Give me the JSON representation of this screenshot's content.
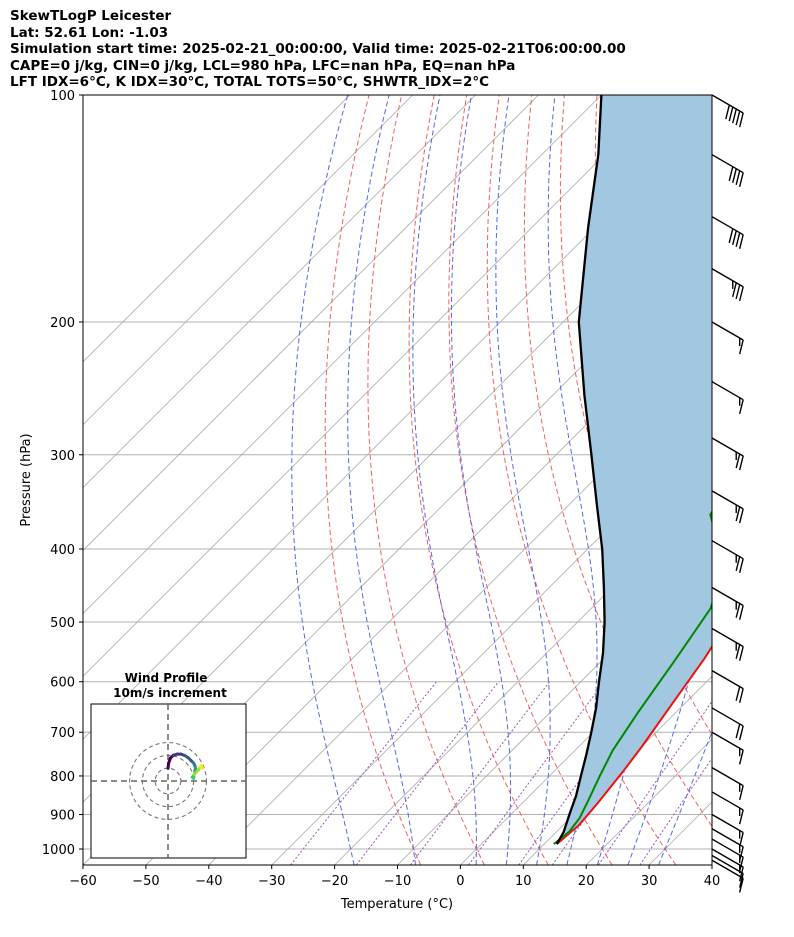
{
  "header": {
    "line1": "SkewTLogP Leicester",
    "line2": "Lat: 52.61   Lon: -1.03",
    "line3": "Simulation start time: 2025-02-21_00:00:00, Valid time: 2025-02-21T06:00:00.00",
    "line4": "CAPE=0 j/kg, CIN=0 j/kg, LCL=980 hPa, LFC=nan hPa, EQ=nan hPa",
    "line5": "LFT IDX=6°C, K IDX=30°C, TOTAL TOTS=50°C, SHWTR_IDX=2°C"
  },
  "chart_data": {
    "type": "line",
    "xlabel": "Temperature (°C)",
    "ylabel": "Pressure (hPa)",
    "xlim": [
      -60,
      40
    ],
    "ylim": [
      1050,
      100
    ],
    "y_scale": "log",
    "skew": true,
    "x_ticks": [
      "−60",
      "−50",
      "−40",
      "−30",
      "−20",
      "−10",
      "0",
      "10",
      "20",
      "30",
      "40"
    ],
    "y_ticks": [
      "100",
      "200",
      "300",
      "400",
      "500",
      "600",
      "700",
      "800",
      "900",
      "1000"
    ],
    "series": [
      {
        "kind": "temperature",
        "color": "#ee1111",
        "points": [
          [
            12,
            985
          ],
          [
            12.5,
            930
          ],
          [
            12,
            870
          ],
          [
            11,
            790
          ],
          [
            10,
            730
          ],
          [
            8,
            640
          ],
          [
            6,
            560
          ],
          [
            3.5,
            490
          ],
          [
            0,
            420
          ],
          [
            -3,
            390
          ],
          [
            -9,
            340
          ],
          [
            -14,
            300
          ],
          [
            -19,
            265
          ],
          [
            -24,
            238
          ],
          [
            -27,
            218
          ],
          [
            -28,
            205
          ],
          [
            -29,
            188
          ],
          [
            -31,
            175
          ],
          [
            -34,
            160
          ],
          [
            -38,
            143
          ],
          [
            -42,
            130
          ],
          [
            -46,
            120
          ],
          [
            -52,
            108
          ],
          [
            -57,
            100
          ]
        ]
      },
      {
        "kind": "dewpoint",
        "color": "#008800",
        "points": [
          [
            11.5,
            985
          ],
          [
            12,
            950
          ],
          [
            11.5,
            910
          ],
          [
            10,
            860
          ],
          [
            8,
            800
          ],
          [
            6,
            740
          ],
          [
            4,
            660
          ],
          [
            1.5,
            560
          ],
          [
            -1,
            480
          ],
          [
            -4,
            440
          ],
          [
            -9,
            400
          ],
          [
            -16,
            360
          ],
          [
            -17.5,
            330
          ],
          [
            -20,
            300
          ],
          [
            -24,
            275
          ],
          [
            -28,
            250
          ],
          [
            -33,
            225
          ],
          [
            -37,
            205
          ],
          [
            -39,
            190
          ],
          [
            -39,
            180
          ],
          [
            -40,
            168
          ],
          [
            -43,
            155
          ],
          [
            -43,
            145
          ],
          [
            -46,
            135
          ],
          [
            -48,
            125
          ],
          [
            -49,
            118
          ],
          [
            -52,
            112
          ],
          [
            -55,
            105
          ],
          [
            -57,
            100
          ]
        ]
      },
      {
        "kind": "parcel",
        "color": "#000000",
        "points": [
          [
            12,
            985
          ],
          [
            11.2,
            950
          ],
          [
            9.3,
            900
          ],
          [
            7.4,
            850
          ],
          [
            5,
            800
          ],
          [
            2.5,
            750
          ],
          [
            -0.3,
            700
          ],
          [
            -3.4,
            650
          ],
          [
            -7.1,
            600
          ],
          [
            -11,
            550
          ],
          [
            -15.7,
            500
          ],
          [
            -21.3,
            450
          ],
          [
            -27.7,
            400
          ],
          [
            -35.5,
            350
          ],
          [
            -44.4,
            300
          ],
          [
            -55,
            250
          ],
          [
            -67.5,
            200
          ],
          [
            -81,
            150
          ],
          [
            -91,
            120
          ],
          [
            -100,
            100
          ]
        ]
      }
    ],
    "dry_adiabats_theta_C": [
      -10,
      0,
      10,
      20,
      30,
      40,
      50,
      60,
      70,
      80,
      90,
      100
    ],
    "moist_adiabats_C": [
      -20,
      -10,
      0,
      5,
      10,
      15,
      20,
      25,
      30
    ],
    "mixing_ratios_gkg": [
      0.4,
      1,
      2,
      4,
      7,
      10,
      16,
      24
    ],
    "cape_fill_color": "#a2c7e0",
    "wind_barbs": [
      {
        "p": 100,
        "speed_kt": 50,
        "dir_deg": 300
      },
      {
        "p": 120,
        "speed_kt": 40,
        "dir_deg": 300
      },
      {
        "p": 145,
        "speed_kt": 40,
        "dir_deg": 300
      },
      {
        "p": 170,
        "speed_kt": 35,
        "dir_deg": 300
      },
      {
        "p": 200,
        "speed_kt": 15,
        "dir_deg": 300
      },
      {
        "p": 240,
        "speed_kt": 15,
        "dir_deg": 300
      },
      {
        "p": 285,
        "speed_kt": 25,
        "dir_deg": 300
      },
      {
        "p": 335,
        "speed_kt": 25,
        "dir_deg": 300
      },
      {
        "p": 390,
        "speed_kt": 25,
        "dir_deg": 300
      },
      {
        "p": 450,
        "speed_kt": 25,
        "dir_deg": 300
      },
      {
        "p": 510,
        "speed_kt": 25,
        "dir_deg": 300
      },
      {
        "p": 580,
        "speed_kt": 20,
        "dir_deg": 300
      },
      {
        "p": 650,
        "speed_kt": 20,
        "dir_deg": 300
      },
      {
        "p": 700,
        "speed_kt": 15,
        "dir_deg": 300
      },
      {
        "p": 780,
        "speed_kt": 15,
        "dir_deg": 300
      },
      {
        "p": 840,
        "speed_kt": 15,
        "dir_deg": 300
      },
      {
        "p": 900,
        "speed_kt": 15,
        "dir_deg": 300
      },
      {
        "p": 940,
        "speed_kt": 15,
        "dir_deg": 300
      },
      {
        "p": 970,
        "speed_kt": 15,
        "dir_deg": 300
      },
      {
        "p": 1000,
        "speed_kt": 15,
        "dir_deg": 300
      },
      {
        "p": 1020,
        "speed_kt": 10,
        "dir_deg": 300
      },
      {
        "p": 1035,
        "speed_kt": 10,
        "dir_deg": 300
      }
    ],
    "hodograph": {
      "title": "Wind Profile",
      "subtitle": "10m/s increment",
      "rings_ms": [
        10,
        20,
        30
      ],
      "points_uv": [
        [
          0,
          10
        ],
        [
          0.5,
          14
        ],
        [
          2,
          18
        ],
        [
          4,
          20
        ],
        [
          7,
          21
        ],
        [
          10,
          21
        ],
        [
          13,
          20
        ],
        [
          16,
          18
        ],
        [
          18,
          16
        ],
        [
          20,
          14
        ],
        [
          21,
          12
        ],
        [
          21.5,
          10
        ],
        [
          21,
          8
        ],
        [
          21,
          6
        ],
        [
          20,
          4
        ],
        [
          19,
          3
        ],
        [
          20,
          2
        ],
        [
          20.5,
          5
        ],
        [
          22,
          7
        ],
        [
          24,
          9
        ],
        [
          25,
          11
        ],
        [
          26,
          12
        ],
        [
          27,
          10
        ]
      ]
    }
  }
}
